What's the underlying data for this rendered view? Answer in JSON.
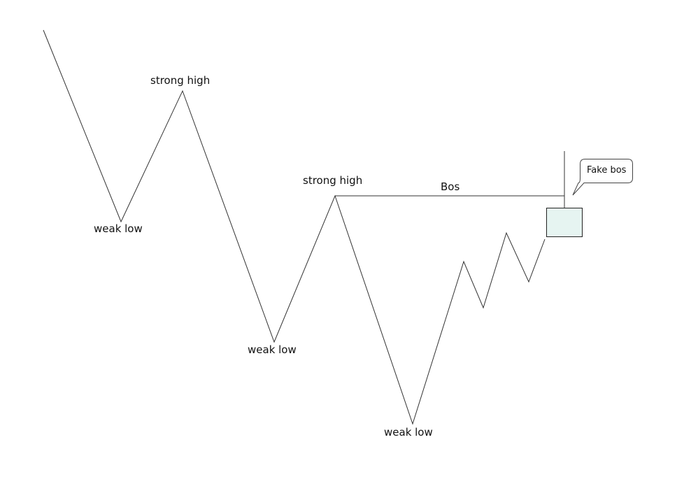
{
  "labels": {
    "strong_high_1": "strong high",
    "strong_high_2": "strong high",
    "weak_low_1": "weak low",
    "weak_low_2": "weak low",
    "weak_low_3": "weak low",
    "bos": "Bos"
  },
  "callout": {
    "text": "Fake bos"
  },
  "colors": {
    "line": "#333333",
    "box_fill": "#e6f4f1",
    "box_stroke": "#222222",
    "text": "#111111"
  }
}
